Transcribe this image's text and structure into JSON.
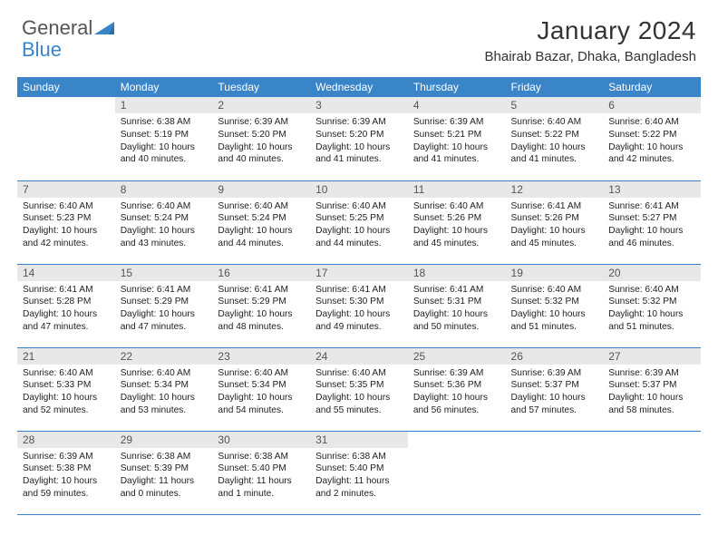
{
  "logo": {
    "part_a": "General",
    "part_b": "Blue"
  },
  "header": {
    "title": "January 2024",
    "subtitle": "Bhairab Bazar, Dhaka, Bangladesh"
  },
  "colors": {
    "accent": "#3a84c8",
    "daynum_bg": "#e8e8e8",
    "daynum_fg": "#555555",
    "text": "#222222",
    "logo_gray": "#555555",
    "background": "#ffffff"
  },
  "typography": {
    "title_fontsize": 28,
    "subtitle_fontsize": 15,
    "header_fontsize": 12,
    "daynum_fontsize": 12,
    "cell_fontsize": 10.2
  },
  "calendar": {
    "type": "table",
    "columns": [
      "Sunday",
      "Monday",
      "Tuesday",
      "Wednesday",
      "Thursday",
      "Friday",
      "Saturday"
    ],
    "start_offset": 1,
    "days": [
      {
        "n": 1,
        "sunrise": "6:38 AM",
        "sunset": "5:19 PM",
        "daylight": "10 hours and 40 minutes."
      },
      {
        "n": 2,
        "sunrise": "6:39 AM",
        "sunset": "5:20 PM",
        "daylight": "10 hours and 40 minutes."
      },
      {
        "n": 3,
        "sunrise": "6:39 AM",
        "sunset": "5:20 PM",
        "daylight": "10 hours and 41 minutes."
      },
      {
        "n": 4,
        "sunrise": "6:39 AM",
        "sunset": "5:21 PM",
        "daylight": "10 hours and 41 minutes."
      },
      {
        "n": 5,
        "sunrise": "6:40 AM",
        "sunset": "5:22 PM",
        "daylight": "10 hours and 41 minutes."
      },
      {
        "n": 6,
        "sunrise": "6:40 AM",
        "sunset": "5:22 PM",
        "daylight": "10 hours and 42 minutes."
      },
      {
        "n": 7,
        "sunrise": "6:40 AM",
        "sunset": "5:23 PM",
        "daylight": "10 hours and 42 minutes."
      },
      {
        "n": 8,
        "sunrise": "6:40 AM",
        "sunset": "5:24 PM",
        "daylight": "10 hours and 43 minutes."
      },
      {
        "n": 9,
        "sunrise": "6:40 AM",
        "sunset": "5:24 PM",
        "daylight": "10 hours and 44 minutes."
      },
      {
        "n": 10,
        "sunrise": "6:40 AM",
        "sunset": "5:25 PM",
        "daylight": "10 hours and 44 minutes."
      },
      {
        "n": 11,
        "sunrise": "6:40 AM",
        "sunset": "5:26 PM",
        "daylight": "10 hours and 45 minutes."
      },
      {
        "n": 12,
        "sunrise": "6:41 AM",
        "sunset": "5:26 PM",
        "daylight": "10 hours and 45 minutes."
      },
      {
        "n": 13,
        "sunrise": "6:41 AM",
        "sunset": "5:27 PM",
        "daylight": "10 hours and 46 minutes."
      },
      {
        "n": 14,
        "sunrise": "6:41 AM",
        "sunset": "5:28 PM",
        "daylight": "10 hours and 47 minutes."
      },
      {
        "n": 15,
        "sunrise": "6:41 AM",
        "sunset": "5:29 PM",
        "daylight": "10 hours and 47 minutes."
      },
      {
        "n": 16,
        "sunrise": "6:41 AM",
        "sunset": "5:29 PM",
        "daylight": "10 hours and 48 minutes."
      },
      {
        "n": 17,
        "sunrise": "6:41 AM",
        "sunset": "5:30 PM",
        "daylight": "10 hours and 49 minutes."
      },
      {
        "n": 18,
        "sunrise": "6:41 AM",
        "sunset": "5:31 PM",
        "daylight": "10 hours and 50 minutes."
      },
      {
        "n": 19,
        "sunrise": "6:40 AM",
        "sunset": "5:32 PM",
        "daylight": "10 hours and 51 minutes."
      },
      {
        "n": 20,
        "sunrise": "6:40 AM",
        "sunset": "5:32 PM",
        "daylight": "10 hours and 51 minutes."
      },
      {
        "n": 21,
        "sunrise": "6:40 AM",
        "sunset": "5:33 PM",
        "daylight": "10 hours and 52 minutes."
      },
      {
        "n": 22,
        "sunrise": "6:40 AM",
        "sunset": "5:34 PM",
        "daylight": "10 hours and 53 minutes."
      },
      {
        "n": 23,
        "sunrise": "6:40 AM",
        "sunset": "5:34 PM",
        "daylight": "10 hours and 54 minutes."
      },
      {
        "n": 24,
        "sunrise": "6:40 AM",
        "sunset": "5:35 PM",
        "daylight": "10 hours and 55 minutes."
      },
      {
        "n": 25,
        "sunrise": "6:39 AM",
        "sunset": "5:36 PM",
        "daylight": "10 hours and 56 minutes."
      },
      {
        "n": 26,
        "sunrise": "6:39 AM",
        "sunset": "5:37 PM",
        "daylight": "10 hours and 57 minutes."
      },
      {
        "n": 27,
        "sunrise": "6:39 AM",
        "sunset": "5:37 PM",
        "daylight": "10 hours and 58 minutes."
      },
      {
        "n": 28,
        "sunrise": "6:39 AM",
        "sunset": "5:38 PM",
        "daylight": "10 hours and 59 minutes."
      },
      {
        "n": 29,
        "sunrise": "6:38 AM",
        "sunset": "5:39 PM",
        "daylight": "11 hours and 0 minutes."
      },
      {
        "n": 30,
        "sunrise": "6:38 AM",
        "sunset": "5:40 PM",
        "daylight": "11 hours and 1 minute."
      },
      {
        "n": 31,
        "sunrise": "6:38 AM",
        "sunset": "5:40 PM",
        "daylight": "11 hours and 2 minutes."
      }
    ],
    "labels": {
      "sunrise": "Sunrise:",
      "sunset": "Sunset:",
      "daylight": "Daylight:"
    }
  }
}
